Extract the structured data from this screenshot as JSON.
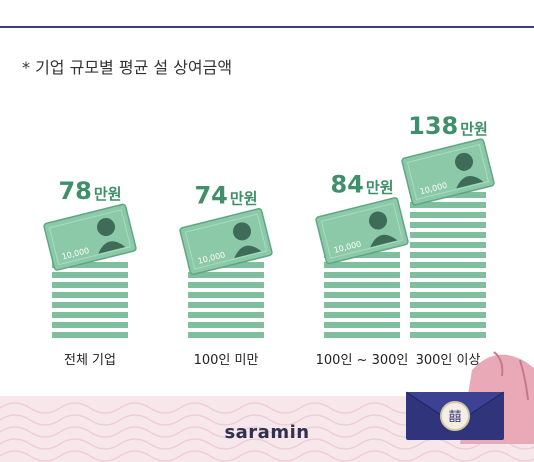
{
  "subtitle": "* 기업 규모별 평균 설 상여금액",
  "brand": "saramin",
  "note_text": "10,000",
  "colors": {
    "bar": "#7fbf9d",
    "value": "#3f8f6b",
    "note": "#8cc9a8",
    "border": "#3b3f7a",
    "footer": "#f7e6ea"
  },
  "chart_data": {
    "type": "bar",
    "title": "* 기업 규모별 평균 설 상여금액",
    "categories": [
      "전체 기업",
      "100인 미만",
      "100인 ~ 300인",
      "300인 이상"
    ],
    "values": [
      78,
      74,
      84,
      138
    ],
    "value_labels": [
      {
        "num": "78",
        "unit": "만원"
      },
      {
        "num": "74",
        "unit": "만원"
      },
      {
        "num": "84",
        "unit": "만원"
      },
      {
        "num": "138",
        "unit": "만원"
      }
    ],
    "xlabel": "",
    "ylabel": "",
    "grid": false,
    "legend": "none"
  }
}
